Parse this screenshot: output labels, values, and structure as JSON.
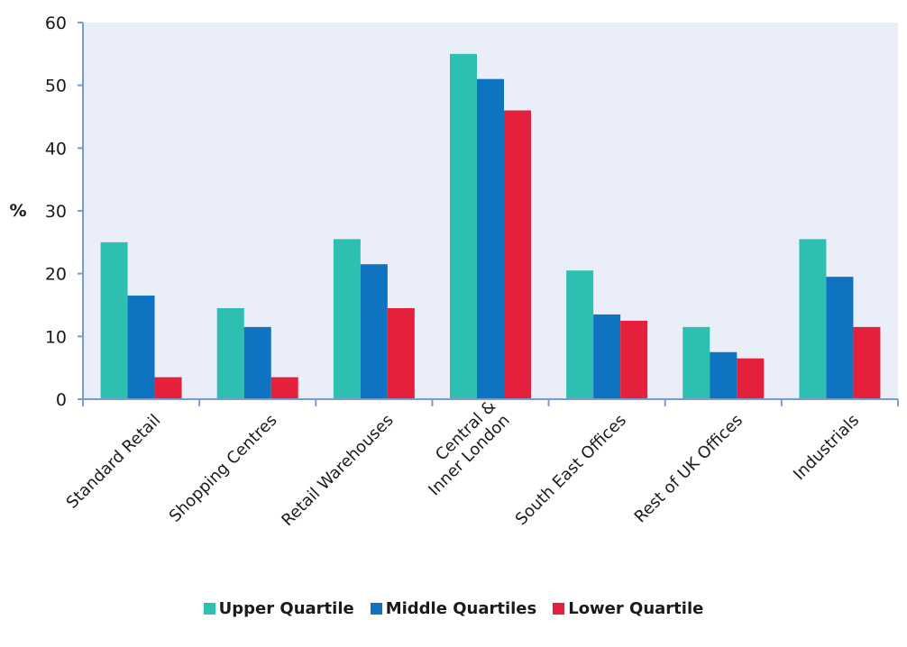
{
  "chart_data": {
    "type": "bar",
    "title": "",
    "xlabel": "",
    "ylabel": "%",
    "ylim": [
      0,
      60
    ],
    "yticks": [
      0,
      10,
      20,
      30,
      40,
      50,
      60
    ],
    "grid": false,
    "legend_position": "bottom",
    "categories": [
      [
        "Standard Retail"
      ],
      [
        "Shopping Centres"
      ],
      [
        "Retail Warehouses"
      ],
      [
        "Central &",
        "Inner London"
      ],
      [
        "South East Offices"
      ],
      [
        "Rest of UK Offices"
      ],
      [
        "Industrials"
      ]
    ],
    "series": [
      {
        "name": "Upper Quartile",
        "color": "#2dbfb0",
        "values": [
          25,
          14.5,
          25.5,
          55,
          20.5,
          11.5,
          25.5
        ]
      },
      {
        "name": "Middle Quartiles",
        "color": "#0e73c0",
        "values": [
          16.5,
          11.5,
          21.5,
          51,
          13.5,
          7.5,
          19.5
        ]
      },
      {
        "name": "Lower Quartile",
        "color": "#e4203c",
        "values": [
          3.5,
          3.5,
          14.5,
          46,
          12.5,
          6.5,
          11.5
        ]
      }
    ]
  }
}
